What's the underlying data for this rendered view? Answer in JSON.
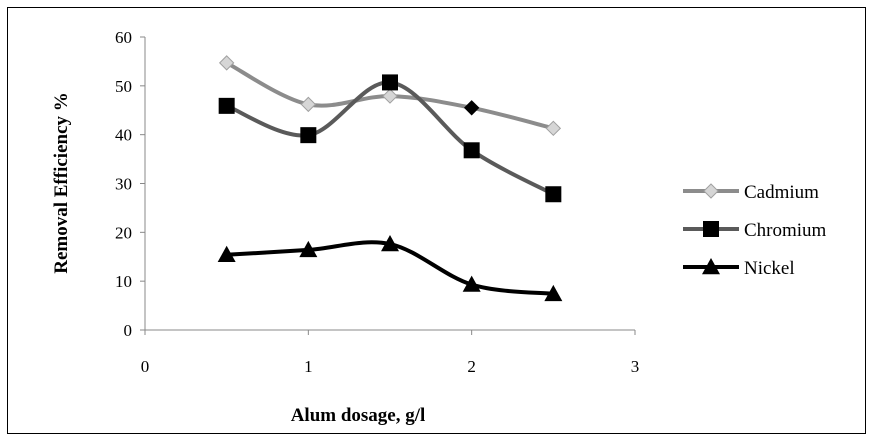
{
  "chart_data": {
    "type": "line",
    "xlabel": "Alum dosage, g/l",
    "ylabel": "Removal Efficiency %",
    "xlim": [
      0,
      3
    ],
    "ylim": [
      0,
      60
    ],
    "x_ticks": [
      "0",
      "1",
      "2",
      "3"
    ],
    "y_ticks": [
      "0",
      "10",
      "20",
      "30",
      "40",
      "50",
      "60"
    ],
    "x": [
      0.5,
      1,
      1.5,
      2,
      2.5
    ],
    "grid": false,
    "legend_position": "right",
    "series": [
      {
        "name": "Cadmium",
        "values": [
          54.7,
          46.2,
          47.9,
          45.5,
          41.3
        ],
        "color": "#8c8c8c",
        "marker": "diamond-open",
        "highlight_index": 3
      },
      {
        "name": "Chromium",
        "values": [
          45.9,
          39.9,
          50.7,
          36.8,
          27.8
        ],
        "color": "#5a5a5a",
        "marker": "square"
      },
      {
        "name": "Nickel",
        "values": [
          15.4,
          16.4,
          17.6,
          9.3,
          7.4
        ],
        "color": "#000000",
        "marker": "triangle"
      }
    ]
  }
}
